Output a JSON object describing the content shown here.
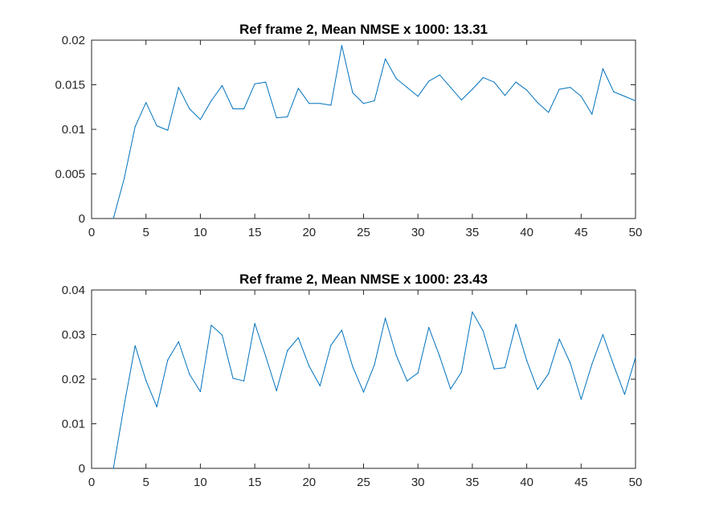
{
  "chart_data": [
    {
      "type": "line",
      "title": "Ref frame 2, Mean NMSE x 1000: 13.31",
      "xlabel": "",
      "ylabel": "",
      "xlim": [
        0,
        50
      ],
      "ylim": [
        0,
        0.02
      ],
      "xticks": [
        0,
        5,
        10,
        15,
        20,
        25,
        30,
        35,
        40,
        45,
        50
      ],
      "xtick_labels": [
        "0",
        "5",
        "10",
        "15",
        "20",
        "25",
        "30",
        "35",
        "40",
        "45",
        "50"
      ],
      "yticks": [
        0,
        0.005,
        0.01,
        0.015,
        0.02
      ],
      "ytick_labels": [
        "0",
        "0.005",
        "0.01",
        "0.015",
        "0.02"
      ],
      "grid": false,
      "color": "#0072bd",
      "series": [
        {
          "x": [
            2,
            3,
            4,
            5,
            6,
            7,
            8,
            9,
            10,
            11,
            12,
            13,
            14,
            15,
            16,
            17,
            18,
            19,
            20,
            21,
            22,
            23,
            24,
            25,
            26,
            27,
            28,
            29,
            30,
            31,
            32,
            33,
            34,
            35,
            36,
            37,
            38,
            39,
            40,
            41,
            42,
            43,
            44,
            45,
            46,
            47,
            48,
            49,
            50
          ],
          "values": [
            0,
            0.0045,
            0.0103,
            0.013,
            0.0104,
            0.0099,
            0.0147,
            0.0123,
            0.0111,
            0.0132,
            0.0149,
            0.0123,
            0.0123,
            0.0151,
            0.0153,
            0.0113,
            0.0114,
            0.0146,
            0.0129,
            0.0129,
            0.0127,
            0.0194,
            0.0141,
            0.0129,
            0.0132,
            0.0179,
            0.0157,
            0.0147,
            0.0137,
            0.0154,
            0.0161,
            0.0147,
            0.0133,
            0.0145,
            0.0158,
            0.0153,
            0.0138,
            0.0153,
            0.0144,
            0.013,
            0.0119,
            0.0145,
            0.0147,
            0.0137,
            0.0117,
            0.0168,
            0.0142,
            0.0137,
            0.0132
          ]
        }
      ]
    },
    {
      "type": "line",
      "title": "Ref frame 2, Mean NMSE x 1000: 23.43",
      "xlabel": "",
      "ylabel": "",
      "xlim": [
        0,
        50
      ],
      "ylim": [
        0,
        0.04
      ],
      "xticks": [
        0,
        5,
        10,
        15,
        20,
        25,
        30,
        35,
        40,
        45,
        50
      ],
      "xtick_labels": [
        "0",
        "5",
        "10",
        "15",
        "20",
        "25",
        "30",
        "35",
        "40",
        "45",
        "50"
      ],
      "yticks": [
        0,
        0.01,
        0.02,
        0.03,
        0.04
      ],
      "ytick_labels": [
        "0",
        "0.01",
        "0.02",
        "0.03",
        "0.04"
      ],
      "grid": false,
      "color": "#0072bd",
      "series": [
        {
          "x": [
            2,
            3,
            4,
            5,
            6,
            7,
            8,
            9,
            10,
            11,
            12,
            13,
            14,
            15,
            16,
            17,
            18,
            19,
            20,
            21,
            22,
            23,
            24,
            25,
            26,
            27,
            28,
            29,
            30,
            31,
            32,
            33,
            34,
            35,
            36,
            37,
            38,
            39,
            40,
            41,
            42,
            43,
            44,
            45,
            46,
            47,
            48,
            49,
            50
          ],
          "values": [
            0,
            0.0142,
            0.0275,
            0.0197,
            0.0138,
            0.0243,
            0.0284,
            0.0211,
            0.0172,
            0.0321,
            0.0299,
            0.0202,
            0.0196,
            0.0325,
            0.0252,
            0.0174,
            0.0264,
            0.0293,
            0.0229,
            0.0185,
            0.0276,
            0.031,
            0.0228,
            0.0171,
            0.0232,
            0.0337,
            0.0254,
            0.0196,
            0.0214,
            0.0316,
            0.0251,
            0.0178,
            0.0216,
            0.0351,
            0.0308,
            0.0223,
            0.0226,
            0.0323,
            0.0242,
            0.0177,
            0.0212,
            0.029,
            0.0236,
            0.0155,
            0.0234,
            0.03,
            0.0231,
            0.0166,
            0.0249
          ]
        }
      ]
    }
  ]
}
